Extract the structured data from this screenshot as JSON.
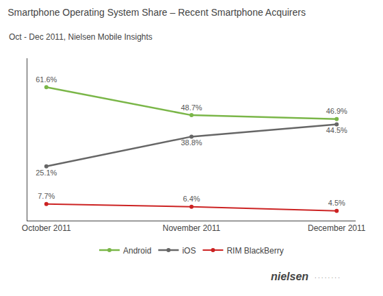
{
  "chart_data": {
    "type": "line",
    "title": "Smartphone Operating System Share – Recent Smartphone Acquirers",
    "subtitle": "Oct - Dec 2011, Nielsen Mobile Insights",
    "categories": [
      "October 2011",
      "November 2011",
      "December 2011"
    ],
    "series": [
      {
        "name": "Android",
        "color": "#7ab648",
        "values": [
          61.6,
          48.7,
          46.9
        ],
        "value_labels": [
          "61.6%",
          "48.7%",
          "46.9%"
        ]
      },
      {
        "name": "iOS",
        "color": "#666666",
        "values": [
          25.1,
          38.8,
          44.5
        ],
        "value_labels": [
          "25.1%",
          "38.8%",
          "44.5%"
        ]
      },
      {
        "name": "RIM BlackBerry",
        "color": "#cc2222",
        "values": [
          7.7,
          6.4,
          4.5
        ],
        "value_labels": [
          "7.7%",
          "6.4%",
          "4.5%"
        ]
      }
    ],
    "ylim": [
      0,
      75
    ],
    "grid": false,
    "data_labels": true,
    "tick_labels": "x",
    "legend": "bottom",
    "annotations": [
      "nielsen",
      "· · · · · · · ·"
    ]
  }
}
